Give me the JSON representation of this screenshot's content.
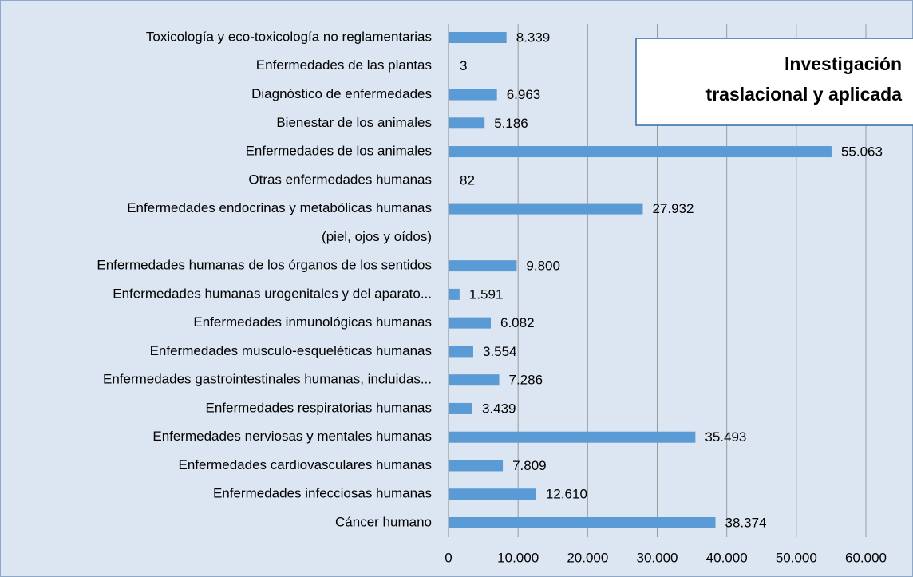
{
  "chart_data": {
    "type": "bar",
    "orientation": "horizontal",
    "title": [
      "Investigación",
      "traslacional y aplicada"
    ],
    "categories": [
      "Toxicología y eco-toxicología no reglamentarias",
      "Enfermedades de las plantas",
      "Diagnóstico de enfermedades",
      "Bienestar de los animales",
      "Enfermedades de los animales",
      "Otras enfermedades humanas",
      "Enfermedades endocrinas y metabólicas humanas",
      "(piel, ojos y oídos)",
      "Enfermedades humanas de los órganos de los sentidos",
      "Enfermedades humanas urogenitales y del aparato...",
      "Enfermedades inmunológicas humanas",
      "Enfermedades musculo-esqueléticas humanas",
      "Enfermedades gastrointestinales humanas, incluidas...",
      "Enfermedades respiratorias humanas",
      "Enfermedades nerviosas y mentales humanas",
      "Enfermedades cardiovasculares humanas",
      "Enfermedades  infecciosas humanas",
      "Cáncer humano"
    ],
    "values": [
      8339,
      3,
      6963,
      5186,
      55063,
      82,
      27932,
      null,
      9800,
      1591,
      6082,
      3554,
      7286,
      3439,
      35493,
      7809,
      12610,
      38374
    ],
    "value_labels": [
      "8.339",
      "3",
      "6.963",
      "5.186",
      "55.063",
      "82",
      "27.932",
      null,
      "9.800",
      "1.591",
      "6.082",
      "3.554",
      "7.286",
      "3.439",
      "35.493",
      "7.809",
      "12.610",
      "38.374"
    ],
    "color": "#5b9bd5",
    "xlim": [
      0,
      60000
    ],
    "xticks": [
      0,
      {
        "value": 10000,
        "label": "10.000"
      },
      {
        "value": 20000,
        "label": "20.000"
      },
      {
        "value": 30000,
        "label": "30.000"
      },
      {
        "value": 40000,
        "label": "40.000"
      },
      {
        "value": 50000,
        "label": "50.000"
      },
      {
        "value": 60000,
        "label": "60.000"
      }
    ],
    "grid": true
  }
}
